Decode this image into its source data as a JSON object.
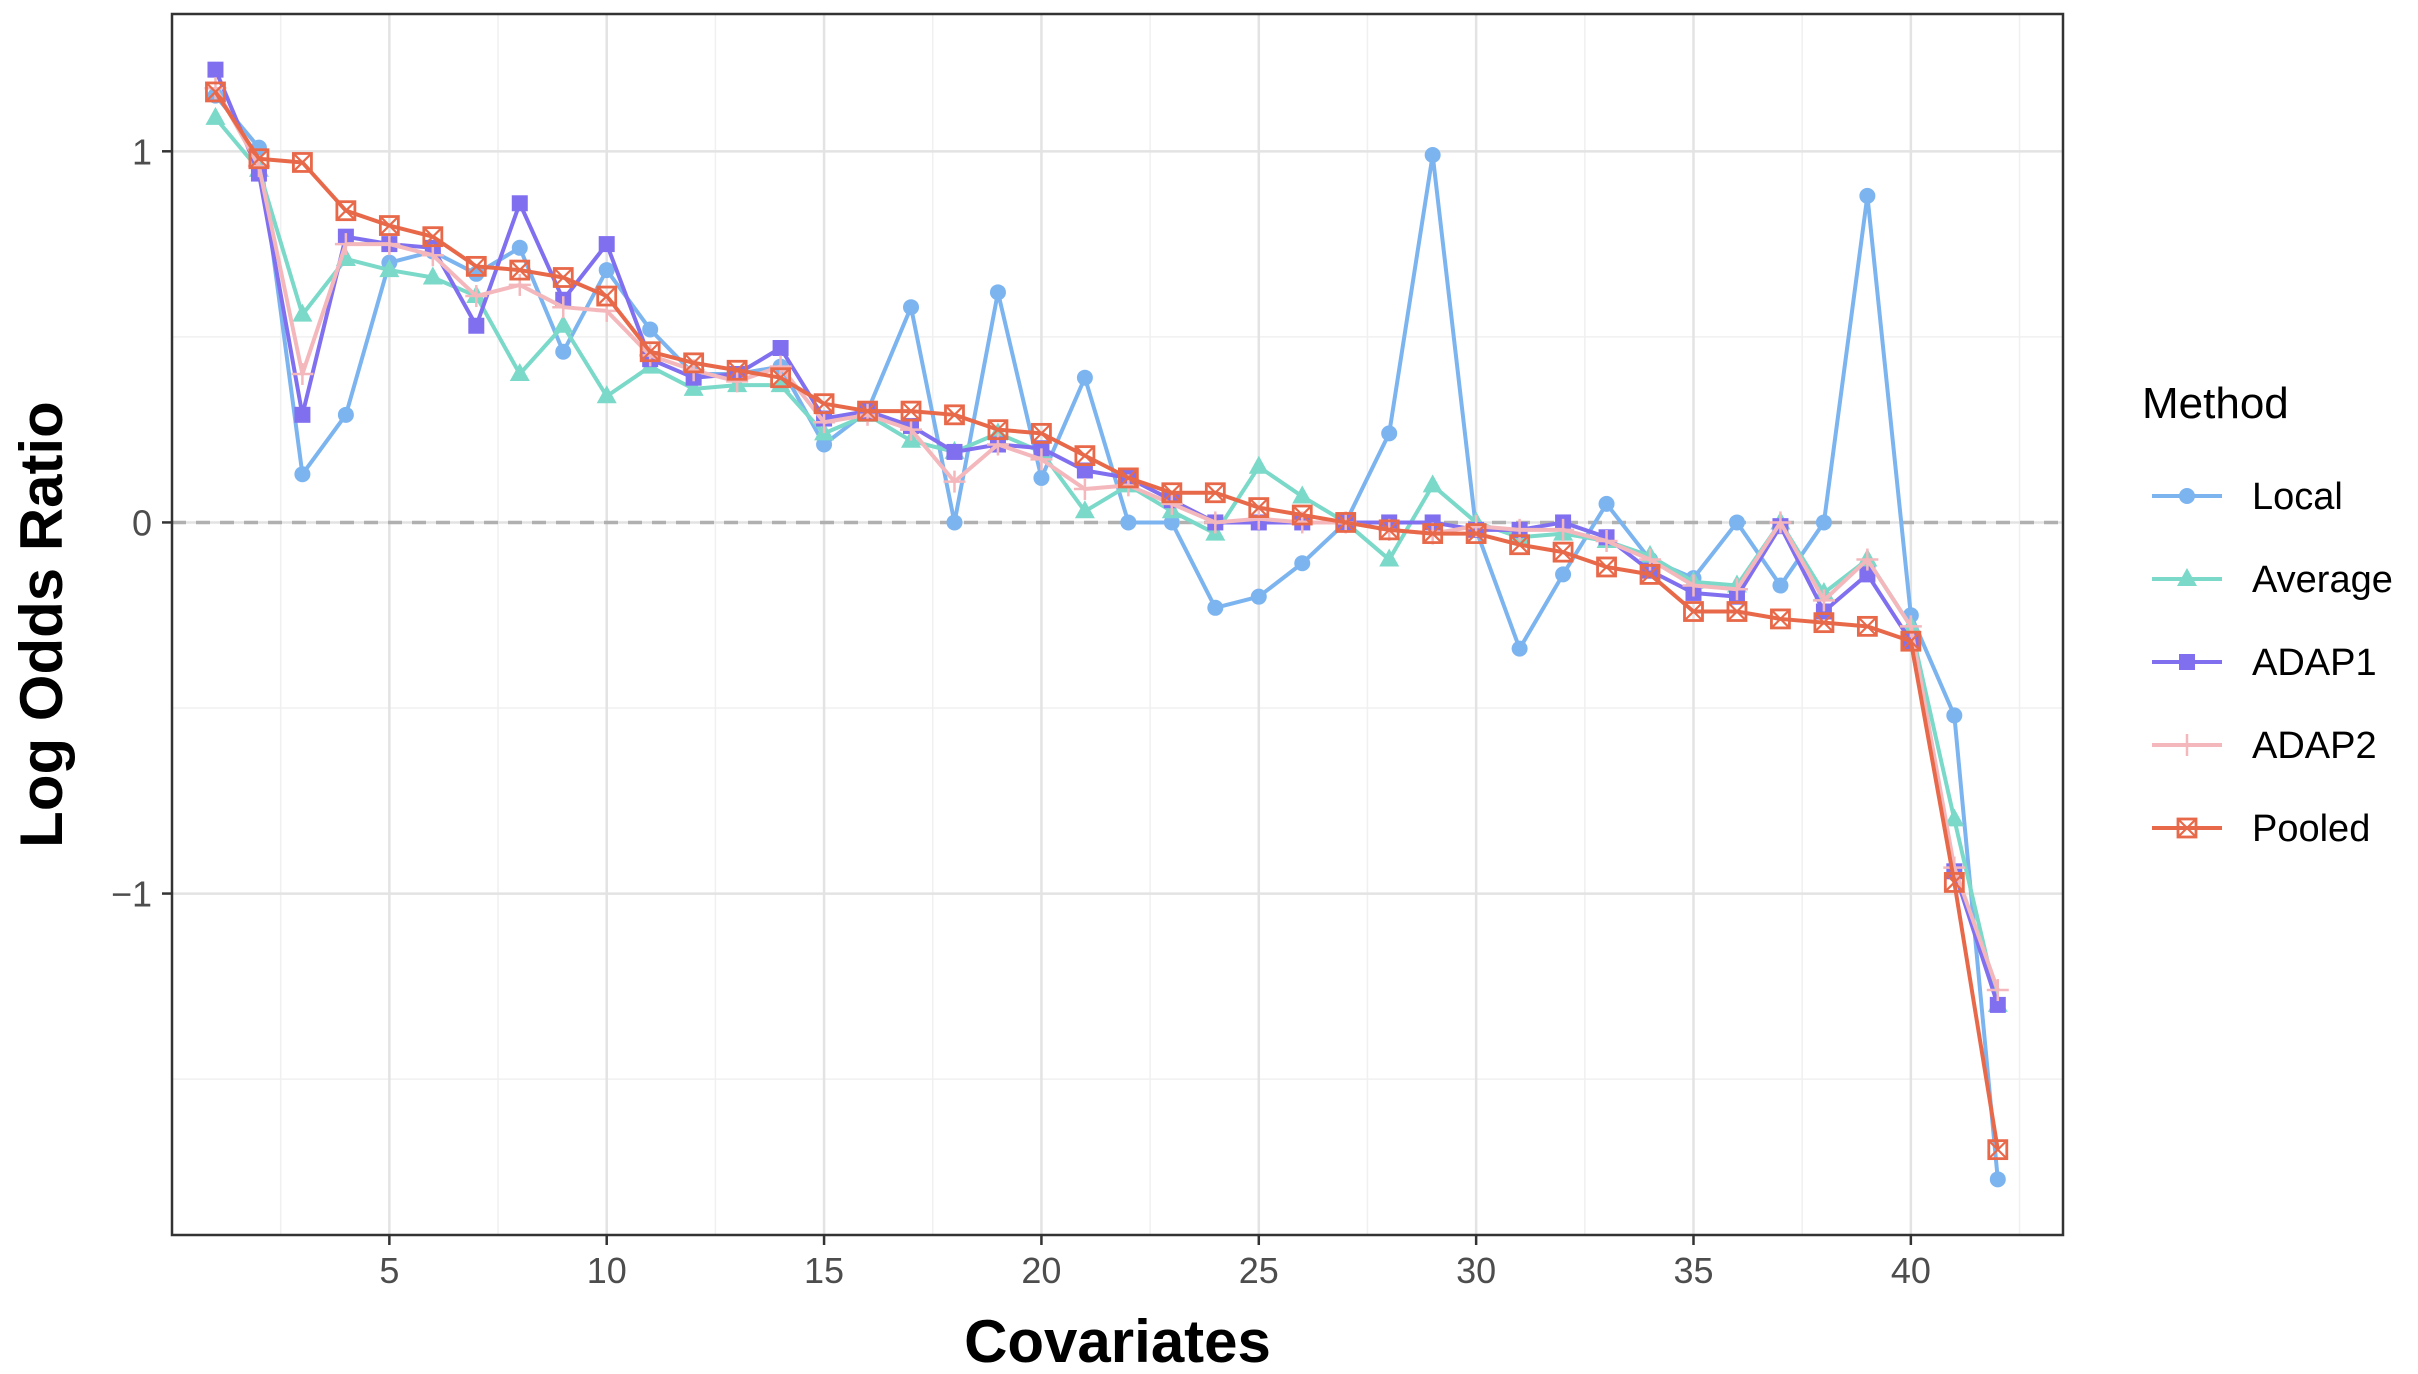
{
  "chart_data": {
    "type": "line",
    "title": "",
    "xlabel": "Covariates",
    "ylabel": "Log Odds Ratio",
    "xlim": [
      0,
      43.5
    ],
    "ylim": [
      -1.92,
      1.37
    ],
    "xticks": [
      5,
      10,
      15,
      20,
      25,
      30,
      35,
      40
    ],
    "yticks": [
      -1,
      0,
      1
    ],
    "ytick_labels": [
      "−1",
      "0",
      "1"
    ],
    "grid": true,
    "reference_line": {
      "y": 0,
      "style": "dashed"
    },
    "legend": {
      "title": "Method",
      "position": "right"
    },
    "x": [
      1,
      2,
      3,
      4,
      5,
      6,
      7,
      8,
      9,
      10,
      11,
      12,
      13,
      14,
      15,
      16,
      17,
      18,
      19,
      20,
      21,
      22,
      23,
      24,
      25,
      26,
      27,
      28,
      29,
      30,
      31,
      32,
      33,
      34,
      35,
      36,
      37,
      38,
      39,
      40,
      41,
      42
    ],
    "series": [
      {
        "name": "Local",
        "color": "#7cb4f0",
        "marker": "circle",
        "values": [
          1.15,
          1.01,
          0.13,
          0.29,
          0.7,
          0.73,
          0.67,
          0.74,
          0.46,
          0.68,
          0.52,
          0.4,
          0.4,
          0.42,
          0.21,
          0.3,
          0.58,
          0.0,
          0.62,
          0.12,
          0.39,
          0.0,
          0.0,
          -0.23,
          -0.2,
          -0.11,
          0.0,
          0.24,
          0.99,
          -0.02,
          -0.34,
          -0.14,
          0.05,
          -0.1,
          -0.15,
          0.0,
          -0.17,
          0.0,
          0.88,
          -0.25,
          -0.52,
          -1.77
        ]
      },
      {
        "name": "Average",
        "color": "#7ad9c8",
        "marker": "triangle",
        "values": [
          1.09,
          0.95,
          0.56,
          0.71,
          0.68,
          0.66,
          0.61,
          0.4,
          0.53,
          0.34,
          0.42,
          0.36,
          0.37,
          0.37,
          0.24,
          0.29,
          0.22,
          0.19,
          0.24,
          0.19,
          0.03,
          0.1,
          0.03,
          -0.03,
          0.15,
          0.07,
          0.0,
          -0.1,
          0.1,
          0.0,
          -0.04,
          -0.03,
          -0.05,
          -0.09,
          -0.16,
          -0.17,
          0.0,
          -0.19,
          -0.1,
          -0.28,
          -0.8,
          -1.3
        ]
      },
      {
        "name": "ADAP1",
        "color": "#8070f0",
        "marker": "square",
        "values": [
          1.22,
          0.94,
          0.29,
          0.77,
          0.75,
          0.74,
          0.53,
          0.86,
          0.6,
          0.75,
          0.44,
          0.39,
          0.4,
          0.47,
          0.28,
          0.3,
          0.26,
          0.19,
          0.21,
          0.2,
          0.14,
          0.12,
          0.06,
          0.0,
          0.0,
          0.0,
          0.0,
          0.0,
          0.0,
          -0.02,
          -0.02,
          0.0,
          -0.04,
          -0.13,
          -0.19,
          -0.2,
          -0.01,
          -0.24,
          -0.14,
          -0.32,
          -0.94,
          -1.3
        ]
      },
      {
        "name": "ADAP2",
        "color": "#f4b8bc",
        "marker": "plus",
        "values": [
          1.17,
          0.96,
          0.4,
          0.75,
          0.75,
          0.72,
          0.61,
          0.64,
          0.58,
          0.57,
          0.45,
          0.41,
          0.38,
          0.42,
          0.27,
          0.29,
          0.25,
          0.11,
          0.21,
          0.17,
          0.09,
          0.1,
          0.05,
          0.0,
          0.01,
          0.0,
          0.0,
          -0.02,
          -0.03,
          -0.01,
          -0.02,
          -0.02,
          -0.05,
          -0.1,
          -0.17,
          -0.18,
          0.0,
          -0.21,
          -0.1,
          -0.28,
          -0.93,
          -1.26
        ]
      },
      {
        "name": "Pooled",
        "color": "#e8694a",
        "marker": "square-x",
        "values": [
          1.16,
          0.98,
          0.97,
          0.84,
          0.8,
          0.77,
          0.69,
          0.68,
          0.66,
          0.61,
          0.46,
          0.43,
          0.41,
          0.39,
          0.32,
          0.3,
          0.3,
          0.29,
          0.25,
          0.24,
          0.18,
          0.12,
          0.08,
          0.08,
          0.04,
          0.02,
          0.0,
          -0.02,
          -0.03,
          -0.03,
          -0.06,
          -0.08,
          -0.12,
          -0.14,
          -0.24,
          -0.24,
          -0.26,
          -0.27,
          -0.28,
          -0.32,
          -0.97,
          -1.69
        ]
      }
    ]
  }
}
